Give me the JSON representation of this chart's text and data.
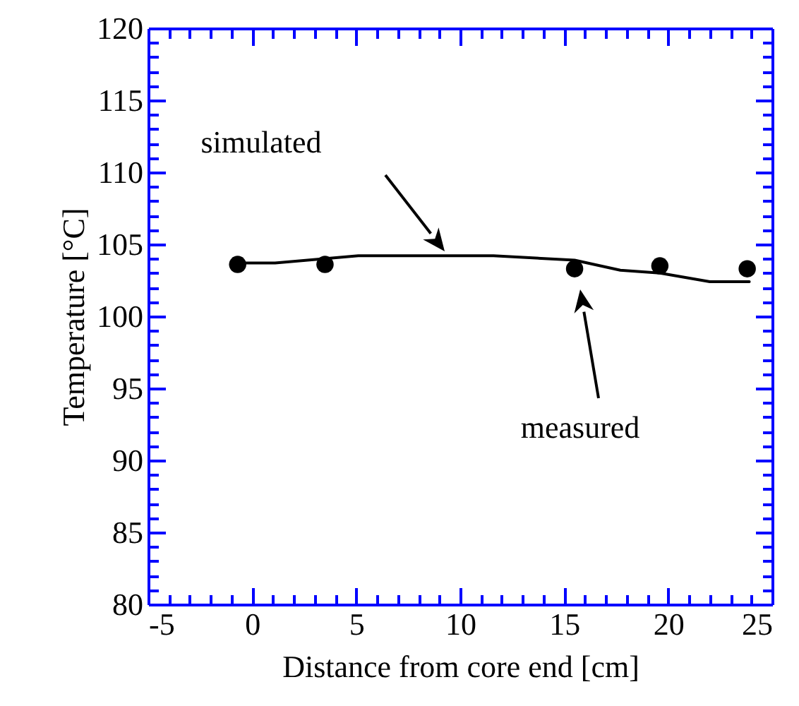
{
  "chart_data": {
    "type": "line",
    "xlabel": "Distance from core end [cm]",
    "ylabel": "Temperature [°C]",
    "series": [
      {
        "color": "#000000",
        "x": [
          -0.7,
          1.1,
          5.1,
          11.6,
          15.5,
          17.7,
          19.6,
          22.0,
          23.9
        ],
        "values": [
          103.7,
          103.7,
          104.2,
          104.2,
          103.9,
          103.2,
          103.0,
          102.4,
          102.4
        ]
      },
      {
        "type": "scatter",
        "color": "#000000",
        "marker": "circle",
        "x": [
          -0.7,
          3.5,
          15.5,
          19.6,
          23.8
        ],
        "values": [
          103.6,
          103.6,
          103.3,
          103.5,
          103.3
        ]
      }
    ],
    "annotations": [
      "simulated",
      "measured"
    ],
    "xlim": [
      -5,
      25
    ],
    "xticks": [
      -5,
      {
        "value": -4,
        "label": null
      },
      {
        "value": -3,
        "label": null
      },
      {
        "value": -2,
        "label": null
      },
      {
        "value": -1,
        "label": null
      },
      0,
      {
        "value": 1,
        "label": null
      },
      {
        "value": 2,
        "label": null
      },
      {
        "value": 3,
        "label": null
      },
      {
        "value": 4,
        "label": null
      },
      5,
      {
        "value": 6,
        "label": null
      },
      {
        "value": 7,
        "label": null
      },
      {
        "value": 8,
        "label": null
      },
      {
        "value": 9,
        "label": null
      },
      10,
      {
        "value": 11,
        "label": null
      },
      {
        "value": 12,
        "label": null
      },
      {
        "value": 13,
        "label": null
      },
      {
        "value": 14,
        "label": null
      },
      15,
      {
        "value": 16,
        "label": null
      },
      {
        "value": 17,
        "label": null
      },
      {
        "value": 18,
        "label": null
      },
      {
        "value": 19,
        "label": null
      },
      20,
      {
        "value": 21,
        "label": null
      },
      {
        "value": 22,
        "label": null
      },
      {
        "value": 23,
        "label": null
      },
      {
        "value": 24,
        "label": null
      },
      25
    ],
    "ylim": [
      80,
      120
    ],
    "yticks": [
      80,
      {
        "value": 81,
        "label": null
      },
      {
        "value": 82,
        "label": null
      },
      {
        "value": 83,
        "label": null
      },
      {
        "value": 84,
        "label": null
      },
      85,
      {
        "value": 86,
        "label": null
      },
      {
        "value": 87,
        "label": null
      },
      {
        "value": 88,
        "label": null
      },
      {
        "value": 89,
        "label": null
      },
      90,
      {
        "value": 91,
        "label": null
      },
      {
        "value": 92,
        "label": null
      },
      {
        "value": 93,
        "label": null
      },
      {
        "value": 94,
        "label": null
      },
      95,
      {
        "value": 96,
        "label": null
      },
      {
        "value": 97,
        "label": null
      },
      {
        "value": 98,
        "label": null
      },
      {
        "value": 99,
        "label": null
      },
      100,
      {
        "value": 101,
        "label": null
      },
      {
        "value": 102,
        "label": null
      },
      {
        "value": 103,
        "label": null
      },
      {
        "value": 104,
        "label": null
      },
      105,
      {
        "value": 106,
        "label": null
      },
      {
        "value": 107,
        "label": null
      },
      {
        "value": 108,
        "label": null
      },
      {
        "value": 109,
        "label": null
      },
      110,
      {
        "value": 111,
        "label": null
      },
      {
        "value": 112,
        "label": null
      },
      {
        "value": 113,
        "label": null
      },
      {
        "value": 114,
        "label": null
      },
      115,
      {
        "value": 116,
        "label": null
      },
      {
        "value": 117,
        "label": null
      },
      {
        "value": 118,
        "label": null
      },
      {
        "value": 119,
        "label": null
      },
      120
    ],
    "legend": false
  }
}
